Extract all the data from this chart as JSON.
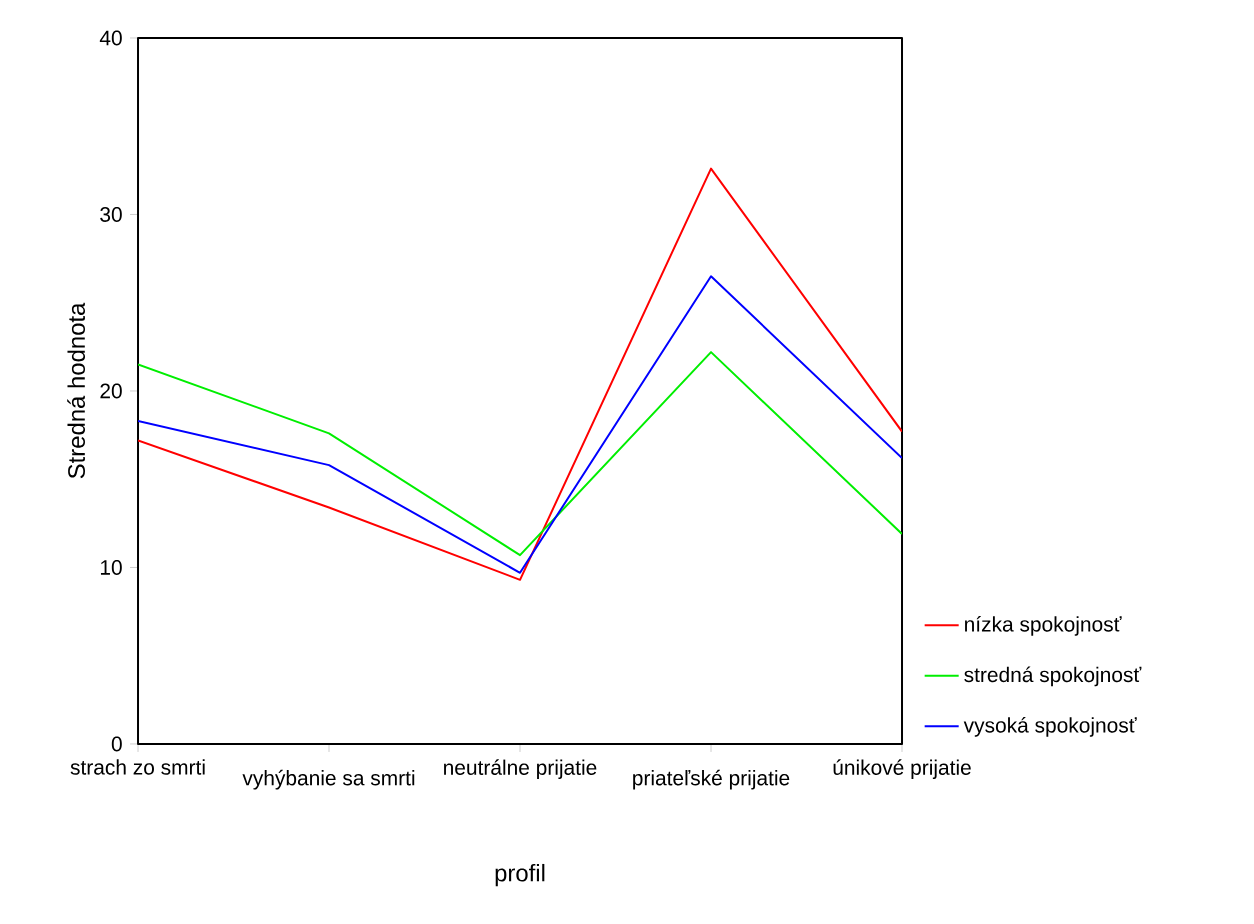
{
  "chart_data": {
    "type": "line",
    "xlabel": "profil",
    "ylabel": "Stredná hodnota",
    "categories": [
      "strach zo smrti",
      "vyhýbanie sa smrti",
      "neutrálne prijatie",
      "priateľské prijatie",
      "únikové prijatie"
    ],
    "series": [
      {
        "name": "nízka spokojnosť",
        "color": "#ff0000",
        "values": [
          17.2,
          13.4,
          9.3,
          32.6,
          17.7
        ]
      },
      {
        "name": "stredná spokojnosť",
        "color": "#00ee00",
        "values": [
          21.5,
          17.6,
          10.7,
          22.2,
          11.9
        ]
      },
      {
        "name": "vysoká spokojnosť",
        "color": "#0000ff",
        "values": [
          18.3,
          15.8,
          9.7,
          26.5,
          16.2
        ]
      }
    ],
    "ylim": [
      0,
      40
    ],
    "yticks": [
      0,
      10,
      20,
      30,
      40
    ],
    "legend": "right",
    "grid": false,
    "marker": "none",
    "line_style": "solid"
  }
}
